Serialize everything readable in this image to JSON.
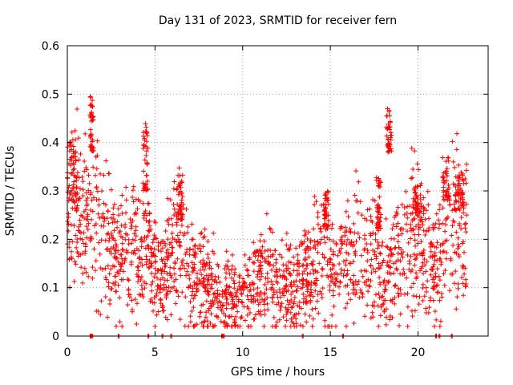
{
  "chart_data": {
    "type": "scatter",
    "title": "Day 131 of 2023, SRMTID for receiver fern",
    "xlabel": "GPS time / hours",
    "ylabel": "SRMTID / TECUs",
    "xlim": [
      0,
      24
    ],
    "ylim": [
      0,
      0.6
    ],
    "xticks": [
      "0",
      "5",
      "10",
      "15",
      "20"
    ],
    "yticks": [
      "0",
      "0.1",
      "0.2",
      "0.3",
      "0.4",
      "0.5",
      "0.6"
    ],
    "grid": true,
    "marker": "+",
    "color": "#ff0000",
    "trend": {
      "x": [
        0,
        0.3,
        0.6,
        1.0,
        1.3,
        1.6,
        2.0,
        2.5,
        3.0,
        3.5,
        4.0,
        4.5,
        5.0,
        5.5,
        6.0,
        6.5,
        7.0,
        7.5,
        8.0,
        8.5,
        9.0,
        9.5,
        10.0,
        10.5,
        11.0,
        11.5,
        12.0,
        12.5,
        13.0,
        13.5,
        14.0,
        14.5,
        15.0,
        15.5,
        16.0,
        16.5,
        17.0,
        17.5,
        18.0,
        18.3,
        18.6,
        19.0,
        19.5,
        20.0,
        20.5,
        21.0,
        21.5,
        22.0,
        22.5,
        22.8
      ],
      "y": [
        0.26,
        0.3,
        0.25,
        0.24,
        0.22,
        0.26,
        0.2,
        0.19,
        0.17,
        0.17,
        0.16,
        0.2,
        0.14,
        0.13,
        0.17,
        0.18,
        0.12,
        0.11,
        0.09,
        0.1,
        0.08,
        0.075,
        0.09,
        0.1,
        0.11,
        0.12,
        0.11,
        0.1,
        0.11,
        0.12,
        0.14,
        0.17,
        0.13,
        0.15,
        0.16,
        0.17,
        0.15,
        0.18,
        0.12,
        0.13,
        0.17,
        0.16,
        0.2,
        0.22,
        0.15,
        0.14,
        0.2,
        0.22,
        0.23,
        0.2
      ]
    },
    "peaks": [
      {
        "x": [
          0.1,
          0.6
        ],
        "y": [
          0.28,
          0.43
        ]
      },
      {
        "x": [
          1.3,
          1.5
        ],
        "y": [
          0.38,
          0.5
        ]
      },
      {
        "x": [
          4.3,
          4.6
        ],
        "y": [
          0.3,
          0.44
        ]
      },
      {
        "x": [
          6.3,
          6.6
        ],
        "y": [
          0.24,
          0.34
        ]
      },
      {
        "x": [
          14.6,
          14.9
        ],
        "y": [
          0.22,
          0.3
        ]
      },
      {
        "x": [
          17.6,
          17.9
        ],
        "y": [
          0.22,
          0.33
        ]
      },
      {
        "x": [
          18.2,
          18.5
        ],
        "y": [
          0.38,
          0.47
        ]
      },
      {
        "x": [
          19.7,
          20.2
        ],
        "y": [
          0.24,
          0.32
        ]
      },
      {
        "x": [
          21.4,
          21.8
        ],
        "y": [
          0.28,
          0.37
        ]
      },
      {
        "x": [
          22.1,
          22.6
        ],
        "y": [
          0.26,
          0.34
        ]
      }
    ],
    "zero_markers": [
      1.3,
      1.4,
      2.9,
      4.6,
      5.4,
      5.9,
      8.8,
      8.9,
      13.4,
      15.7,
      21.0,
      21.2,
      21.9
    ],
    "point_count": 1900
  }
}
